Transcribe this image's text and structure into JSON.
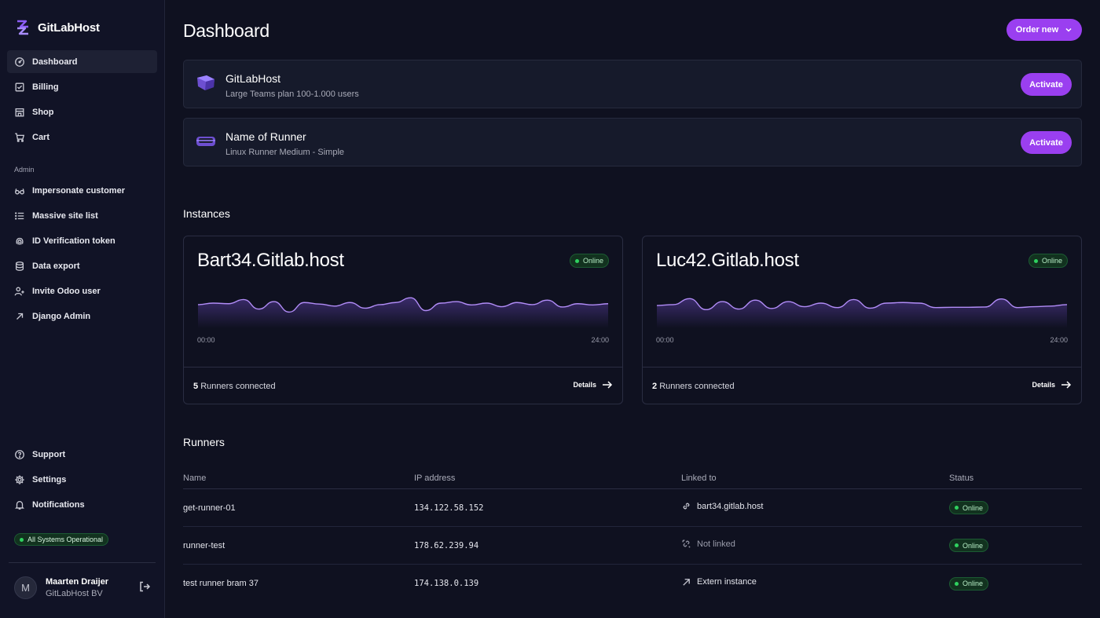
{
  "brand": {
    "name": "GitLabHost"
  },
  "nav": {
    "main": [
      {
        "label": "Dashboard",
        "icon": "dashboard-icon"
      },
      {
        "label": "Billing",
        "icon": "billing-icon"
      },
      {
        "label": "Shop",
        "icon": "shop-icon"
      },
      {
        "label": "Cart",
        "icon": "cart-icon"
      }
    ],
    "admin_label": "Admin",
    "admin": [
      {
        "label": "Impersonate customer",
        "icon": "glasses-icon"
      },
      {
        "label": "Massive site list",
        "icon": "list-icon"
      },
      {
        "label": "ID Verification token",
        "icon": "fingerprint-icon"
      },
      {
        "label": "Data export",
        "icon": "database-icon"
      },
      {
        "label": "Invite Odoo user",
        "icon": "user-plus-icon"
      },
      {
        "label": "Django Admin",
        "icon": "external-arrow-icon"
      }
    ],
    "bottom": [
      {
        "label": "Support",
        "icon": "help-icon"
      },
      {
        "label": "Settings",
        "icon": "gear-icon"
      },
      {
        "label": "Notifications",
        "icon": "bell-icon"
      }
    ]
  },
  "system_status": "All Systems Operational",
  "user": {
    "initial": "M",
    "name": "Maarten Draijer",
    "org": "GitLabHost BV"
  },
  "header": {
    "title": "Dashboard",
    "order_label": "Order new"
  },
  "offers": [
    {
      "title": "GitLabHost",
      "subtitle": "Large Teams plan 100-1.000 users",
      "action": "Activate"
    },
    {
      "title": "Name of Runner",
      "subtitle": "Linux Runner Medium - Simple",
      "action": "Activate"
    }
  ],
  "instances_title": "Instances",
  "instances": [
    {
      "name": "Bart34.Gitlab.host",
      "status": "Online",
      "axis_start": "00:00",
      "axis_end": "24:00",
      "runners_count": "5",
      "runners_label": "Runners connected",
      "details_label": "Details",
      "activity": [
        0.45,
        0.5,
        0.48,
        0.62,
        0.3,
        0.55,
        0.2,
        0.52,
        0.47,
        0.4,
        0.52,
        0.33,
        0.45,
        0.52,
        0.68,
        0.25,
        0.5,
        0.55,
        0.44,
        0.5,
        0.38,
        0.52,
        0.45,
        0.6,
        0.37,
        0.48,
        0.44,
        0.48
      ]
    },
    {
      "name": "Luc42.Gitlab.host",
      "status": "Online",
      "axis_start": "00:00",
      "axis_end": "24:00",
      "runners_count": "2",
      "runners_label": "Runners connected",
      "details_label": "Details",
      "activity": [
        0.42,
        0.45,
        0.65,
        0.28,
        0.55,
        0.3,
        0.6,
        0.32,
        0.55,
        0.38,
        0.5,
        0.35,
        0.62,
        0.33,
        0.5,
        0.52,
        0.5,
        0.35,
        0.36,
        0.36,
        0.37,
        0.64,
        0.35,
        0.38,
        0.4,
        0.45
      ]
    }
  ],
  "runners_title": "Runners",
  "runners_table": {
    "columns": [
      "Name",
      "IP address",
      "Linked to",
      "Status"
    ],
    "rows": [
      {
        "name": "get-runner-01",
        "ip": "134.122.58.152",
        "linked": "bart34.gitlab.host",
        "link_icon": "link-icon",
        "status": "Online"
      },
      {
        "name": "runner-test",
        "ip": "178.62.239.94",
        "linked": "Not linked",
        "link_icon": "broken-link-icon",
        "status": "Online"
      },
      {
        "name": "test runner bram 37",
        "ip": "174.138.0.139",
        "linked": "Extern instance",
        "link_icon": "external-arrow-icon",
        "status": "Online"
      }
    ]
  },
  "colors": {
    "accent": "#9a3ff0",
    "online": "#2fd15f",
    "background": "#0f1120"
  }
}
